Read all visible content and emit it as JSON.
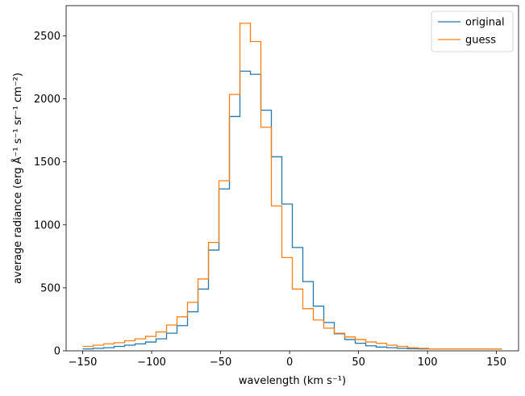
{
  "chart_data": {
    "type": "line",
    "step": "post",
    "xlabel": "wavelength (km s⁻¹)",
    "ylabel": "average radiance (erg Å⁻¹ s⁻¹ sr⁻¹ cm⁻²)",
    "xlim": [
      -162,
      166
    ],
    "ylim": [
      0,
      2740
    ],
    "xticks": [
      -150,
      -100,
      -50,
      0,
      50,
      100,
      150
    ],
    "xtick_labels": [
      "−150",
      "−100",
      "−50",
      "0",
      "50",
      "100",
      "150"
    ],
    "yticks": [
      0,
      500,
      1000,
      1500,
      2000,
      2500
    ],
    "ytick_labels": [
      "0",
      "500",
      "1000",
      "1500",
      "2000",
      "2500"
    ],
    "legend_position": "top-right",
    "bin_edges": [
      -150,
      -142.4,
      -134.8,
      -127.2,
      -119.6,
      -112,
      -104.4,
      -96.8,
      -89.2,
      -81.6,
      -74,
      -66.4,
      -58.8,
      -51.2,
      -43.6,
      -36,
      -28.4,
      -20.8,
      -13.2,
      -5.6,
      2,
      9.6,
      17.2,
      24.8,
      32.4,
      40,
      47.6,
      55.2,
      62.8,
      70.4,
      78,
      85.6,
      93.2,
      100.8,
      108.4,
      116,
      123.6,
      131.2,
      138.8,
      146.4,
      154
    ],
    "series": [
      {
        "name": "original",
        "color": "#1f77b4",
        "values": [
          15,
          20,
          25,
          35,
          45,
          55,
          70,
          95,
          140,
          200,
          310,
          490,
          800,
          1285,
          1860,
          2220,
          2195,
          1910,
          1540,
          1165,
          820,
          550,
          355,
          225,
          135,
          90,
          60,
          40,
          30,
          25,
          20,
          17,
          15,
          15,
          15,
          15,
          15,
          15,
          15,
          15
        ]
      },
      {
        "name": "guess",
        "color": "#ff7f0e",
        "values": [
          35,
          45,
          55,
          65,
          80,
          95,
          115,
          150,
          205,
          270,
          385,
          570,
          860,
          1350,
          2035,
          2600,
          2455,
          1775,
          1150,
          740,
          490,
          335,
          245,
          180,
          140,
          110,
          90,
          70,
          60,
          45,
          35,
          25,
          20,
          15,
          15,
          15,
          15,
          15,
          15,
          15
        ]
      }
    ]
  }
}
